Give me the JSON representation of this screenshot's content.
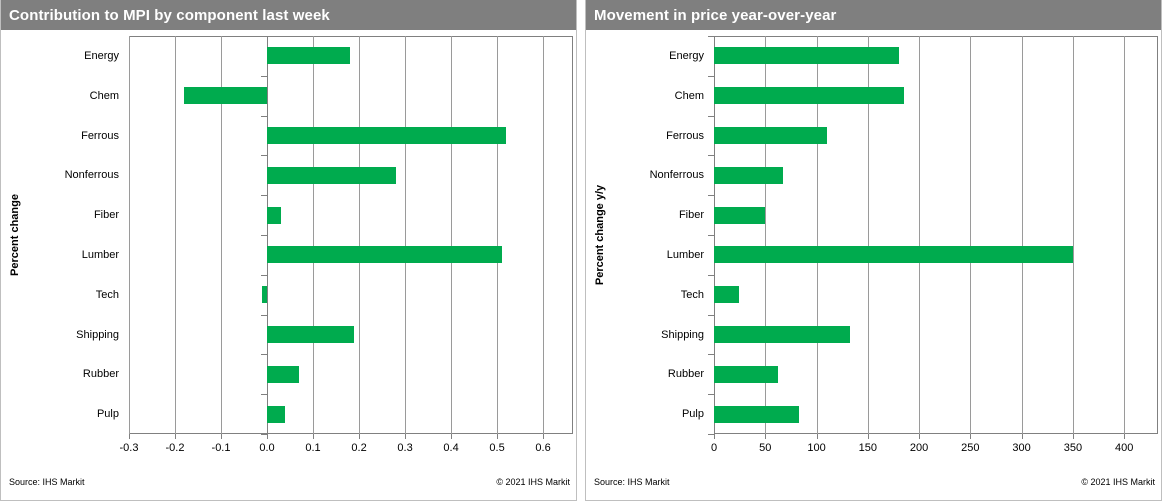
{
  "panels": [
    {
      "title": "Contribution to MPI by component last week",
      "ylabel": "Percent change",
      "source": "Source: IHS Markit",
      "copyright": "© 2021  IHS Markit"
    },
    {
      "title": "Movement in price year-over-year",
      "ylabel": "Percent change y/y",
      "source": "Source: IHS Markit",
      "copyright": "© 2021  IHS Markit"
    }
  ],
  "chart_data": [
    {
      "type": "bar",
      "orientation": "horizontal",
      "title": "Contribution to MPI by component last week",
      "xlabel": "",
      "ylabel": "Percent change",
      "categories": [
        "Energy",
        "Chem",
        "Ferrous",
        "Nonferrous",
        "Fiber",
        "Lumber",
        "Tech",
        "Shipping",
        "Rubber",
        "Pulp"
      ],
      "values": [
        0.18,
        -0.18,
        0.52,
        0.28,
        0.03,
        0.51,
        -0.01,
        0.19,
        0.07,
        0.04
      ],
      "xlim": [
        -0.3,
        0.665
      ],
      "xticks": [
        -0.3,
        -0.2,
        -0.1,
        0,
        0.1,
        0.2,
        0.3,
        0.4,
        0.5,
        0.6
      ],
      "xtick_labels": [
        "-0.3",
        "-0.2",
        "-0.1",
        "0.0",
        "0.1",
        "0.2",
        "0.3",
        "0.4",
        "0.5",
        "0.6"
      ],
      "grid": true,
      "legend": false,
      "bar_color": "#00ab4e"
    },
    {
      "type": "bar",
      "orientation": "horizontal",
      "title": "Movement in price year-over-year",
      "xlabel": "",
      "ylabel": "Percent change y/y",
      "categories": [
        "Energy",
        "Chem",
        "Ferrous",
        "Nonferrous",
        "Fiber",
        "Lumber",
        "Tech",
        "Shipping",
        "Rubber",
        "Pulp"
      ],
      "values": [
        180,
        185,
        110,
        67,
        50,
        350,
        24,
        133,
        62,
        83
      ],
      "xlim": [
        0,
        433
      ],
      "xticks": [
        0,
        50,
        100,
        150,
        200,
        250,
        300,
        350,
        400
      ],
      "xtick_labels": [
        "0",
        "50",
        "100",
        "150",
        "200",
        "250",
        "300",
        "350",
        "400"
      ],
      "grid": true,
      "legend": false,
      "bar_color": "#00ab4e"
    }
  ],
  "colors": {
    "bar_green": "#00ab4e",
    "header_bg": "#7f7f7f",
    "gridline": "#9a9a9a",
    "axis": "#808080",
    "panel_border": "#bfbfbf"
  }
}
